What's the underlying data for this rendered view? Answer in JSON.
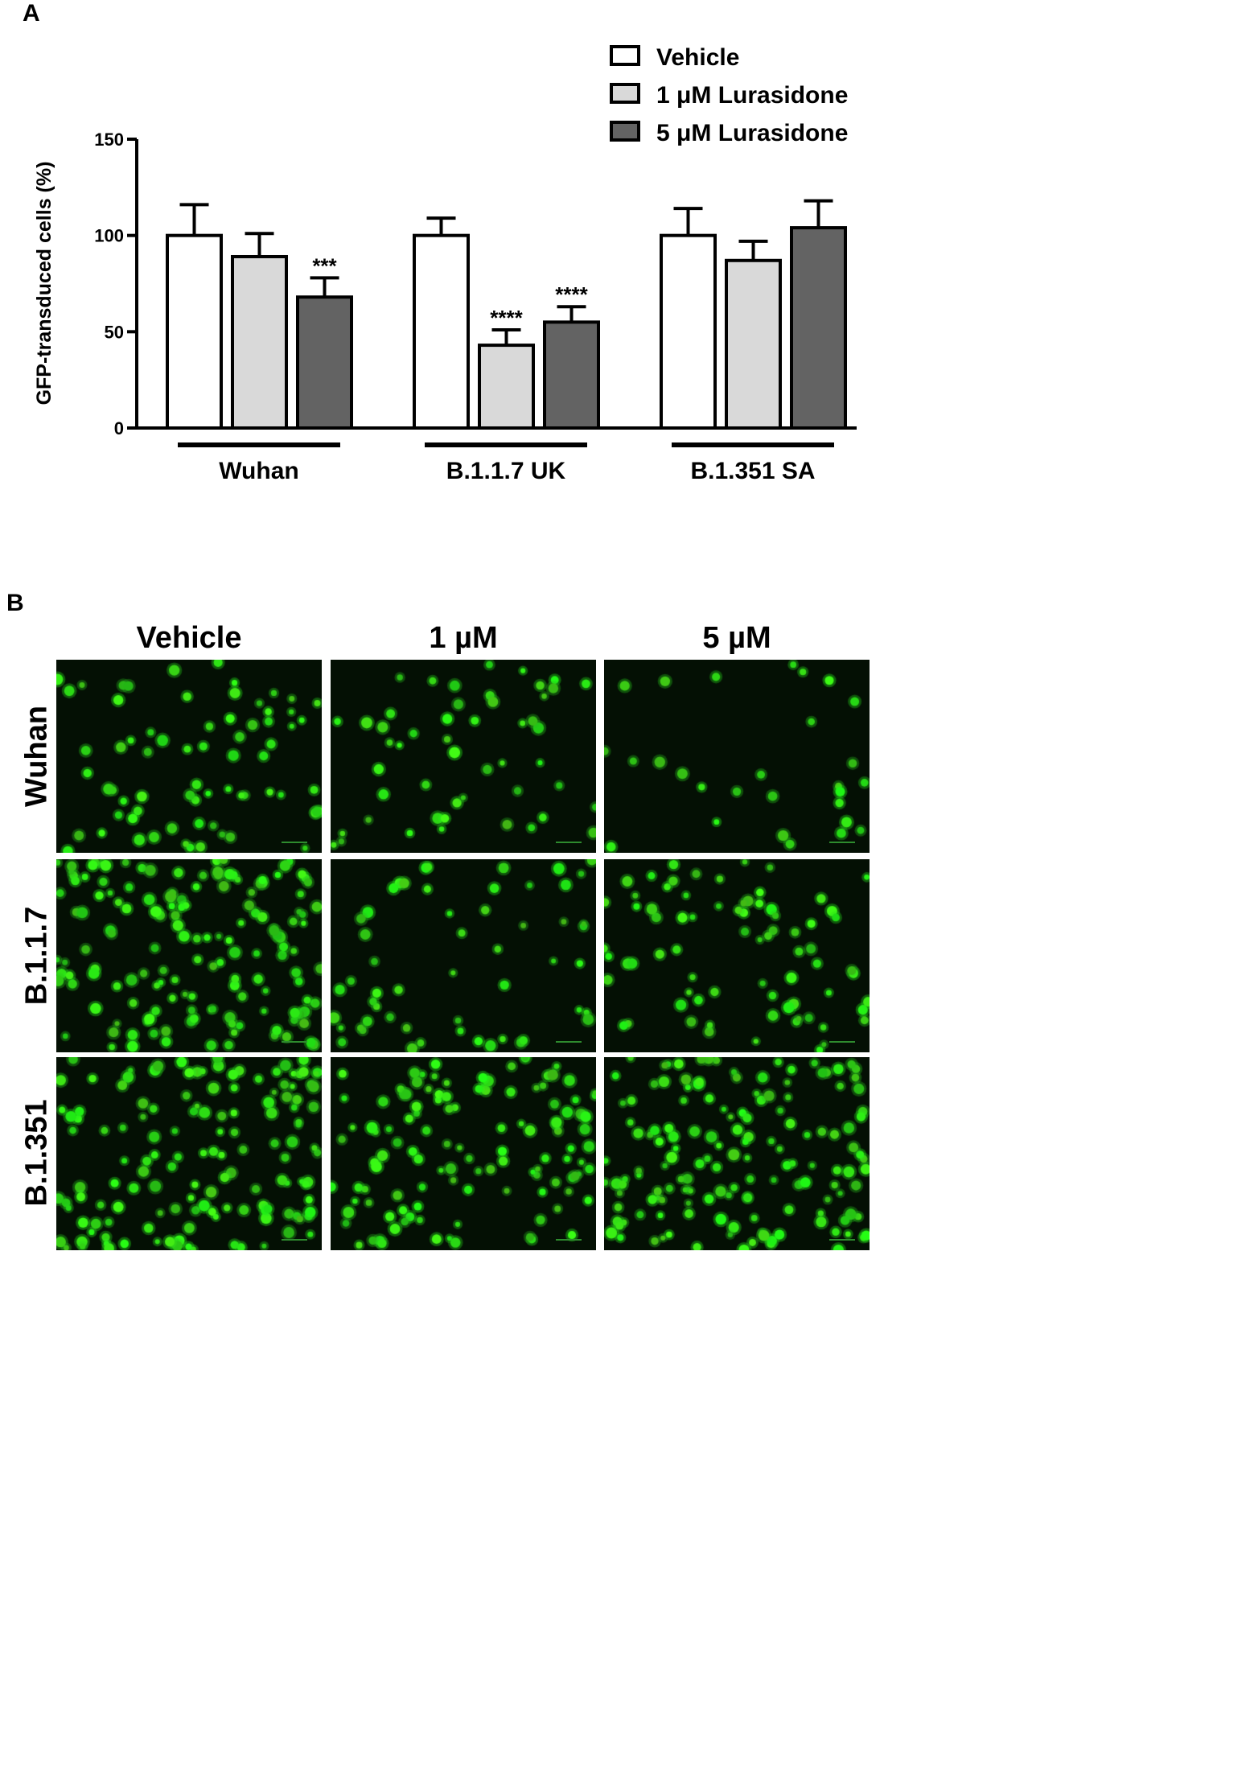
{
  "panel_a_label": "A",
  "panel_b_label": "B",
  "chart_data": {
    "type": "bar",
    "ylabel": "GFP-transduced cells (%)",
    "xlabel": "",
    "ylim": [
      0,
      150
    ],
    "yticks": [
      0,
      50,
      100,
      150
    ],
    "categories": [
      "Wuhan",
      "B.1.1.7 UK",
      "B.1.351 SA"
    ],
    "legend_position": "top-right",
    "series": [
      {
        "name": "Vehicle",
        "color": "#ffffff",
        "values": [
          100,
          100,
          100
        ],
        "errors": [
          16,
          9,
          14
        ],
        "annotations": [
          "",
          "",
          ""
        ]
      },
      {
        "name": "1 μM Lurasidone",
        "color": "#d9d9d9",
        "values": [
          89,
          43,
          87
        ],
        "errors": [
          12,
          8,
          10
        ],
        "annotations": [
          "",
          "****",
          ""
        ]
      },
      {
        "name": "5 μM Lurasidone",
        "color": "#636363",
        "values": [
          68,
          55,
          104
        ],
        "errors": [
          10,
          8,
          14
        ],
        "annotations": [
          "***",
          "****",
          ""
        ]
      }
    ]
  },
  "micrographs": {
    "columns": [
      "Vehicle",
      "1 µM",
      "5 µM"
    ],
    "rows": [
      "Wuhan",
      "B.1.1.7",
      "B.1.351"
    ]
  }
}
